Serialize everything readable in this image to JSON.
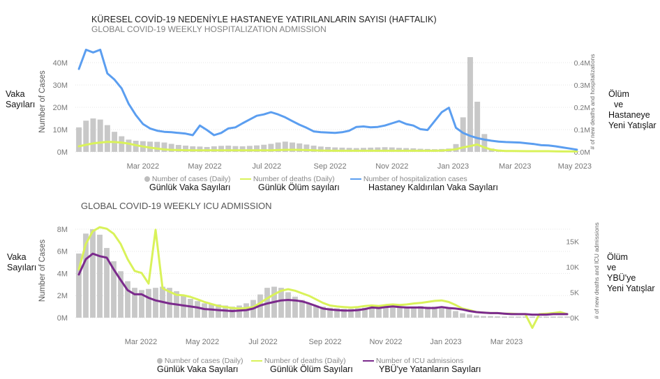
{
  "titles": {
    "hosp_tr": "KÜRESEL COVİD-19 NEDENİYLE HASTANEYE YATIRILANLARIN SAYISI (HAFTALIK)",
    "hosp_en": "GLOBAL COVID-19 WEEKLY HOSPITALIZATION ADMISSION",
    "icu_en": "GLOBAL COVID-19 WEEKLY ICU ADMISSION"
  },
  "side_labels": {
    "left_top": [
      "Vaka",
      "Sayıları"
    ],
    "right_top": [
      "Ölüm",
      "ve",
      "Hastaneye",
      "Yeni Yatışlar"
    ],
    "left_bottom": [
      "Vaka",
      "Sayıları"
    ],
    "right_bottom": [
      "Ölüm",
      "ve",
      "YBÜ'ye",
      "Yeni Yatışlar"
    ]
  },
  "legend_top": {
    "items": [
      {
        "label": "Number of cases (Daily)",
        "tr": "Günlük Vaka Sayıları",
        "kind": "dot",
        "color": "#bdbdbd"
      },
      {
        "label": "Number of deaths (Daily)",
        "tr": "Günlük Ölüm sayıları",
        "kind": "line",
        "color": "#d9f25a"
      },
      {
        "label": "Number of hospitalization cases",
        "tr": "Hastaney Kaldırılan Vaka Sayıları",
        "kind": "line",
        "color": "#5b9ef0"
      }
    ]
  },
  "legend_bottom": {
    "items": [
      {
        "label": "Number of cases (Daily)",
        "tr": "Günlük Vaka Sayıları",
        "kind": "dot",
        "color": "#bdbdbd"
      },
      {
        "label": "Number of deaths (Daily)",
        "tr": "Günlük Ölüm Sayıları",
        "kind": "line",
        "color": "#d9f25a"
      },
      {
        "label": "Number of ICU admissions",
        "tr": "YBÜ'ye Yatanların Sayıları",
        "kind": "line",
        "color": "#7b2a8c"
      }
    ]
  },
  "chart_data": [
    {
      "type": "bar+line",
      "title": "GLOBAL COVID-19 WEEKLY HOSPITALIZATION ADMISSION",
      "ylabel": "Number of Cases",
      "ylabel_right": "# of new deaths and hospitalizations",
      "ylim": [
        0,
        45000000
      ],
      "ylim_right": [
        0,
        450000
      ],
      "yticks": [
        {
          "v": 0,
          "t": "0M"
        },
        {
          "v": 10000000,
          "t": "10M"
        },
        {
          "v": 20000000,
          "t": "20M"
        },
        {
          "v": 30000000,
          "t": "30M"
        },
        {
          "v": 40000000,
          "t": "40M"
        }
      ],
      "yticks_right": [
        {
          "v": 0,
          "t": "0.0M"
        },
        {
          "v": 100000,
          "t": "0.1M"
        },
        {
          "v": 200000,
          "t": "0.2M"
        },
        {
          "v": 300000,
          "t": "0.3M"
        },
        {
          "v": 400000,
          "t": "0.4M"
        }
      ],
      "xticks": [
        "Mar 2022",
        "May 2022",
        "Jul 2022",
        "Sep 2022",
        "Nov 2022",
        "Jan 2023",
        "Mar 2023",
        "May 2023"
      ],
      "xtick_weeks": [
        9,
        17.7,
        26.4,
        35.3,
        44,
        52.6,
        61.3,
        69.7
      ],
      "n_weeks": 71,
      "series": [
        {
          "name": "Number of cases (Daily)",
          "kind": "bar",
          "axis": "left",
          "color": "#c8c8c8",
          "values": [
            11000000,
            14000000,
            15000000,
            14500000,
            12000000,
            9000000,
            7000000,
            5500000,
            5000000,
            4800000,
            4600000,
            4500000,
            4200000,
            3600000,
            3100000,
            2800000,
            2500000,
            2400000,
            2200000,
            2500000,
            2700000,
            2800000,
            2600000,
            2500000,
            2700000,
            2900000,
            3200000,
            3600000,
            4200000,
            4600000,
            4200000,
            3800000,
            3300000,
            2800000,
            2400000,
            2200000,
            2000000,
            1900000,
            1800000,
            1700000,
            1800000,
            1900000,
            2000000,
            2100000,
            2000000,
            1800000,
            1700000,
            1600000,
            1400000,
            1300000,
            1200000,
            1300000,
            1500000,
            3500000,
            15500000,
            42500000,
            22500000,
            8000000,
            1500000,
            1000000,
            800000,
            600000,
            500000,
            400000,
            400000,
            300000,
            300000,
            300000,
            250000,
            200000,
            150000
          ]
        },
        {
          "name": "Number of deaths (Daily)",
          "kind": "line",
          "axis": "right",
          "color": "#d9f25a",
          "values": [
            25000,
            32000,
            38000,
            42000,
            45000,
            44000,
            42000,
            37000,
            30000,
            24000,
            19000,
            15000,
            11000,
            9000,
            8000,
            7500,
            7000,
            7000,
            7000,
            7000,
            7000,
            7000,
            7000,
            7000,
            7000,
            7000,
            7000,
            7000,
            8000,
            9000,
            9500,
            9000,
            8000,
            7000,
            6000,
            5500,
            5000,
            5000,
            5000,
            5000,
            5000,
            5000,
            5000,
            5000,
            5000,
            5000,
            5000,
            5000,
            5000,
            5000,
            5000,
            6000,
            8000,
            12000,
            20000,
            26000,
            33000,
            20000,
            10000,
            6000,
            4000,
            4000,
            3500,
            3000,
            3000,
            3000,
            3000,
            2500,
            2000,
            2000,
            2000
          ]
        },
        {
          "name": "Number of hospitalization cases",
          "kind": "line",
          "axis": "right",
          "color": "#5b9ef0",
          "values": [
            372000,
            458000,
            446000,
            458000,
            352000,
            324000,
            285000,
            215000,
            165000,
            125000,
            105000,
            95000,
            90000,
            88000,
            85000,
            82000,
            75000,
            118000,
            98000,
            75000,
            85000,
            105000,
            110000,
            128000,
            145000,
            162000,
            168000,
            178000,
            168000,
            155000,
            138000,
            122000,
            108000,
            92000,
            88000,
            87000,
            85000,
            88000,
            95000,
            112000,
            114000,
            110000,
            112000,
            118000,
            128000,
            138000,
            125000,
            118000,
            102000,
            98000,
            138000,
            178000,
            198000,
            108000,
            85000,
            72000,
            62000,
            55000,
            50000,
            46000,
            44000,
            43000,
            42000,
            38000,
            35000,
            30000,
            29000,
            25000,
            20000,
            15000,
            10000
          ]
        }
      ]
    },
    {
      "type": "bar+line",
      "title": "GLOBAL COVID-19 WEEKLY ICU ADMISSION",
      "ylabel": "Number of Cases",
      "ylabel_right": "# of new deaths and ICU admissions",
      "ylim": [
        0,
        8500000
      ],
      "ylim_right": [
        0,
        18500
      ],
      "yticks": [
        {
          "v": 0,
          "t": "0M"
        },
        {
          "v": 2000000,
          "t": "2M"
        },
        {
          "v": 4000000,
          "t": "4M"
        },
        {
          "v": 6000000,
          "t": "6M"
        },
        {
          "v": 8000000,
          "t": "8M"
        }
      ],
      "yticks_right": [
        {
          "v": 0,
          "t": "0K"
        },
        {
          "v": 5000,
          "t": "5K"
        },
        {
          "v": 10000,
          "t": "10K"
        },
        {
          "v": 15000,
          "t": "15K"
        }
      ],
      "xticks": [
        "Mar 2022",
        "May 2022",
        "Jul 2022",
        "Sep 2022",
        "Nov 2022",
        "Jan 2023",
        "Mar 2023"
      ],
      "xtick_weeks": [
        8.9,
        17.7,
        26.4,
        35.3,
        44,
        52.6,
        61.3
      ],
      "n_weeks": 71,
      "series": [
        {
          "name": "Number of cases (Daily)",
          "kind": "bar",
          "axis": "left",
          "color": "#c8c8c8",
          "values": [
            5800000,
            7600000,
            8000000,
            7500000,
            6300000,
            5100000,
            4200000,
            3300000,
            2700000,
            2500000,
            2600000,
            2700000,
            2800000,
            2700000,
            2400000,
            2000000,
            1700000,
            1500000,
            1300000,
            1200000,
            1200000,
            1100000,
            1000000,
            1100000,
            1300000,
            1600000,
            2100000,
            2700000,
            2800000,
            2700000,
            2300000,
            1900000,
            1600000,
            1300000,
            1100000,
            1000000,
            900000,
            850000,
            800000,
            800000,
            850000,
            900000,
            950000,
            1000000,
            950000,
            900000,
            900000,
            950000,
            1000000,
            1050000,
            1000000,
            1000000,
            1000000,
            900000,
            600000,
            400000,
            300000,
            200000,
            150000,
            150000,
            120000,
            100000,
            100000,
            100000,
            100000,
            100000,
            100000,
            100000,
            100000,
            100000,
            100000
          ]
        },
        {
          "name": "Number of deaths (Daily)",
          "kind": "line",
          "axis": "right",
          "color": "#d9f25a",
          "values": [
            9500,
            14500,
            17000,
            17800,
            17500,
            16500,
            14500,
            11500,
            9200,
            8800,
            6700,
            17300,
            5800,
            5100,
            4500,
            4400,
            4100,
            3600,
            3100,
            2700,
            2300,
            2100,
            1900,
            1800,
            1900,
            2100,
            2900,
            3800,
            4600,
            5300,
            5600,
            5300,
            4800,
            4300,
            3600,
            2900,
            2400,
            2200,
            2100,
            2000,
            2100,
            2300,
            2400,
            2300,
            2500,
            2600,
            2500,
            2600,
            2800,
            2900,
            3100,
            3300,
            3400,
            3100,
            2500,
            1800,
            1500,
            1100,
            1000,
            900,
            900,
            800,
            800,
            700,
            700,
            -2000,
            700,
            800,
            900,
            1100,
            700
          ]
        },
        {
          "name": "Number of ICU admissions",
          "kind": "line",
          "axis": "right",
          "color": "#7b2a8c",
          "values": [
            8500,
            11500,
            12600,
            12100,
            11800,
            9500,
            7400,
            5400,
            4600,
            4600,
            3900,
            3400,
            3100,
            2800,
            2600,
            2400,
            2200,
            2000,
            1700,
            1600,
            1500,
            1400,
            1300,
            1400,
            1500,
            1800,
            2400,
            2800,
            3100,
            3400,
            3500,
            3400,
            3200,
            2800,
            2300,
            1800,
            1600,
            1500,
            1400,
            1400,
            1500,
            1700,
            2000,
            1900,
            2100,
            2200,
            2100,
            2000,
            2000,
            2000,
            1900,
            1900,
            2100,
            1900,
            1800,
            1600,
            1300,
            1100,
            1000,
            900,
            900,
            800,
            700,
            700,
            700,
            600,
            600,
            600,
            700,
            700,
            700
          ]
        }
      ]
    }
  ]
}
